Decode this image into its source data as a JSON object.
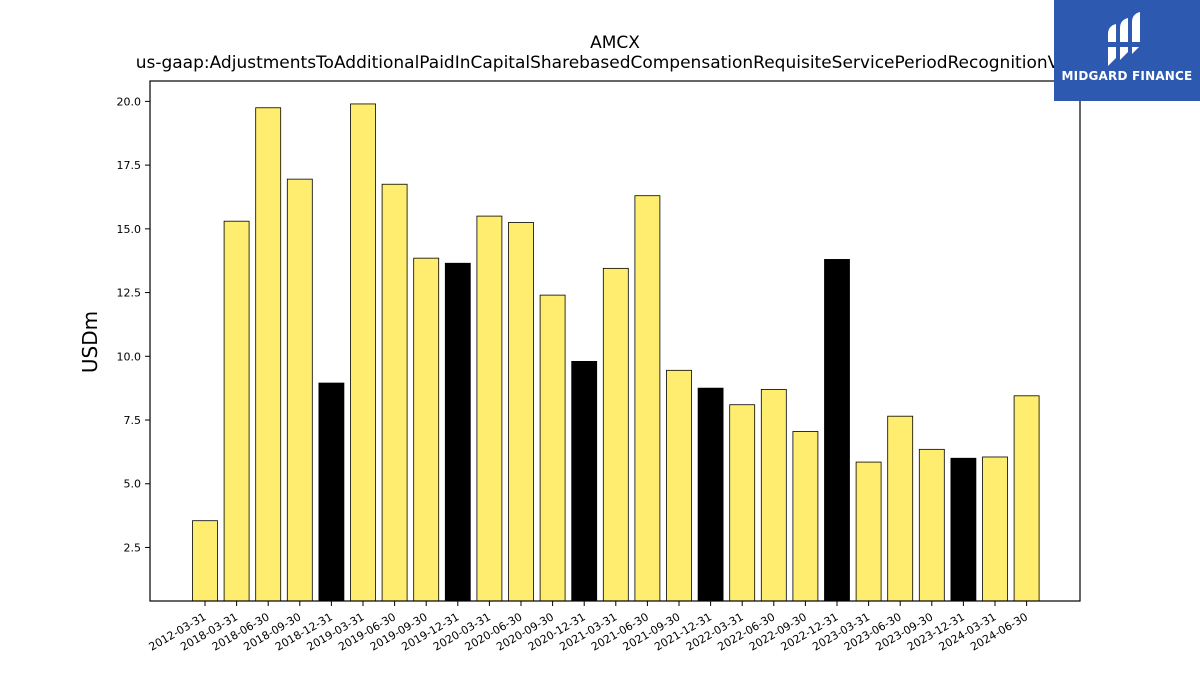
{
  "chart_data": {
    "type": "bar",
    "title": "AMCX",
    "subtitle": "us-gaap:AdjustmentsToAdditionalPaidInCapitalSharebasedCompensationRequisiteServicePeriodRecognitionValue",
    "xlabel": "",
    "ylabel": "USDm",
    "ylim": [
      0.4,
      20.8
    ],
    "yticks": [
      "2.5",
      "5.0",
      "7.5",
      "10.0",
      "12.5",
      "15.0",
      "17.5",
      "20.0"
    ],
    "grid": false,
    "categories": [
      "2012-03-31",
      "2018-03-31",
      "2018-06-30",
      "2018-09-30",
      "2018-12-31",
      "2019-03-31",
      "2019-06-30",
      "2019-09-30",
      "2019-12-31",
      "2020-03-31",
      "2020-06-30",
      "2020-09-30",
      "2020-12-31",
      "2021-03-31",
      "2021-06-30",
      "2021-09-30",
      "2021-12-31",
      "2022-03-31",
      "2022-06-30",
      "2022-09-30",
      "2022-12-31",
      "2023-03-31",
      "2023-06-30",
      "2023-09-30",
      "2023-12-31",
      "2024-03-31",
      "2024-06-30"
    ],
    "values": [
      3.55,
      15.3,
      19.75,
      16.95,
      8.95,
      19.9,
      16.75,
      13.85,
      13.65,
      15.5,
      15.25,
      12.4,
      9.8,
      13.45,
      16.3,
      9.45,
      8.75,
      8.1,
      8.7,
      7.05,
      13.8,
      5.85,
      7.65,
      6.35,
      6.0,
      6.05,
      8.45
    ],
    "highlight": [
      false,
      false,
      false,
      false,
      true,
      false,
      false,
      false,
      true,
      false,
      false,
      false,
      true,
      false,
      false,
      false,
      true,
      false,
      false,
      false,
      true,
      false,
      false,
      false,
      true,
      false,
      false
    ],
    "colors": {
      "bar": "#ffed6f",
      "highlight": "#000000",
      "edge": "#000000"
    }
  },
  "logo": {
    "text": "MIDGARD FINANCE",
    "bg": "#2d59b0"
  }
}
